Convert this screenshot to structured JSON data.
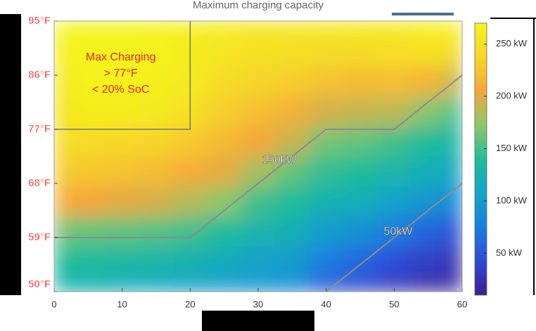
{
  "chart_data": {
    "type": "heatmap",
    "title": "Maximum charging capacity",
    "x": [
      0,
      5,
      10,
      15,
      20,
      25,
      30,
      35,
      40,
      45,
      50,
      55,
      60
    ],
    "y": [
      95,
      90,
      85,
      80,
      75,
      70,
      65,
      60,
      55,
      50
    ],
    "z": [
      [
        270,
        270,
        270,
        268,
        265,
        262,
        258,
        258,
        258,
        260,
        262,
        268,
        268
      ],
      [
        265,
        270,
        270,
        268,
        262,
        255,
        250,
        248,
        245,
        245,
        248,
        250,
        245
      ],
      [
        255,
        268,
        268,
        265,
        258,
        245,
        238,
        232,
        225,
        220,
        222,
        215,
        190
      ],
      [
        250,
        262,
        262,
        258,
        250,
        232,
        222,
        212,
        195,
        190,
        188,
        170,
        150
      ],
      [
        245,
        245,
        242,
        238,
        230,
        218,
        205,
        190,
        165,
        160,
        150,
        140,
        130
      ],
      [
        230,
        228,
        225,
        220,
        210,
        200,
        180,
        160,
        145,
        140,
        130,
        120,
        110
      ],
      [
        210,
        205,
        200,
        195,
        185,
        172,
        150,
        140,
        125,
        120,
        105,
        95,
        80
      ],
      [
        165,
        160,
        158,
        155,
        150,
        140,
        128,
        120,
        100,
        90,
        75,
        60,
        45
      ],
      [
        140,
        138,
        135,
        130,
        125,
        115,
        105,
        100,
        75,
        62,
        45,
        35,
        25
      ],
      [
        125,
        122,
        118,
        112,
        105,
        100,
        95,
        90,
        50,
        40,
        30,
        20,
        15
      ]
    ],
    "xlim": [
      0,
      60
    ],
    "xticks": [
      0,
      10,
      20,
      30,
      40,
      50,
      60
    ],
    "ylim": [
      50,
      95
    ],
    "yticks": [
      {
        "value": 95,
        "label": "95°F"
      },
      {
        "value": 86,
        "label": "86°F"
      },
      {
        "value": 77,
        "label": "77°F"
      },
      {
        "value": 68,
        "label": "68°F"
      },
      {
        "value": 59,
        "label": "59°F"
      },
      {
        "value": 50,
        "label": "50°F"
      }
    ],
    "clim": [
      10,
      270
    ],
    "cticks": [
      {
        "value": 50,
        "label": "50 kW"
      },
      {
        "value": 100,
        "label": "100 kW"
      },
      {
        "value": 150,
        "label": "150 kW"
      },
      {
        "value": 200,
        "label": "200 kW"
      },
      {
        "value": 250,
        "label": "250 kW"
      }
    ],
    "colormap": [
      "#3e1f8a",
      "#2f48d8",
      "#1a7ee0",
      "#12a5c8",
      "#1fbc9a",
      "#8cc86a",
      "#f5a63a",
      "#f7d52a",
      "#f4f41a"
    ],
    "contours": [
      {
        "label": "150kW",
        "x": [
          0,
          20,
          40,
          50,
          60
        ],
        "y": [
          59,
          59,
          77,
          77,
          86
        ]
      },
      {
        "label": "50kW",
        "x": [
          40,
          60
        ],
        "y": [
          50,
          68
        ]
      }
    ],
    "region": {
      "lines": [
        "Max Charging",
        "> 77°F",
        "< 20% SoC"
      ],
      "x": [
        0,
        20
      ],
      "y": [
        77,
        95
      ]
    }
  }
}
